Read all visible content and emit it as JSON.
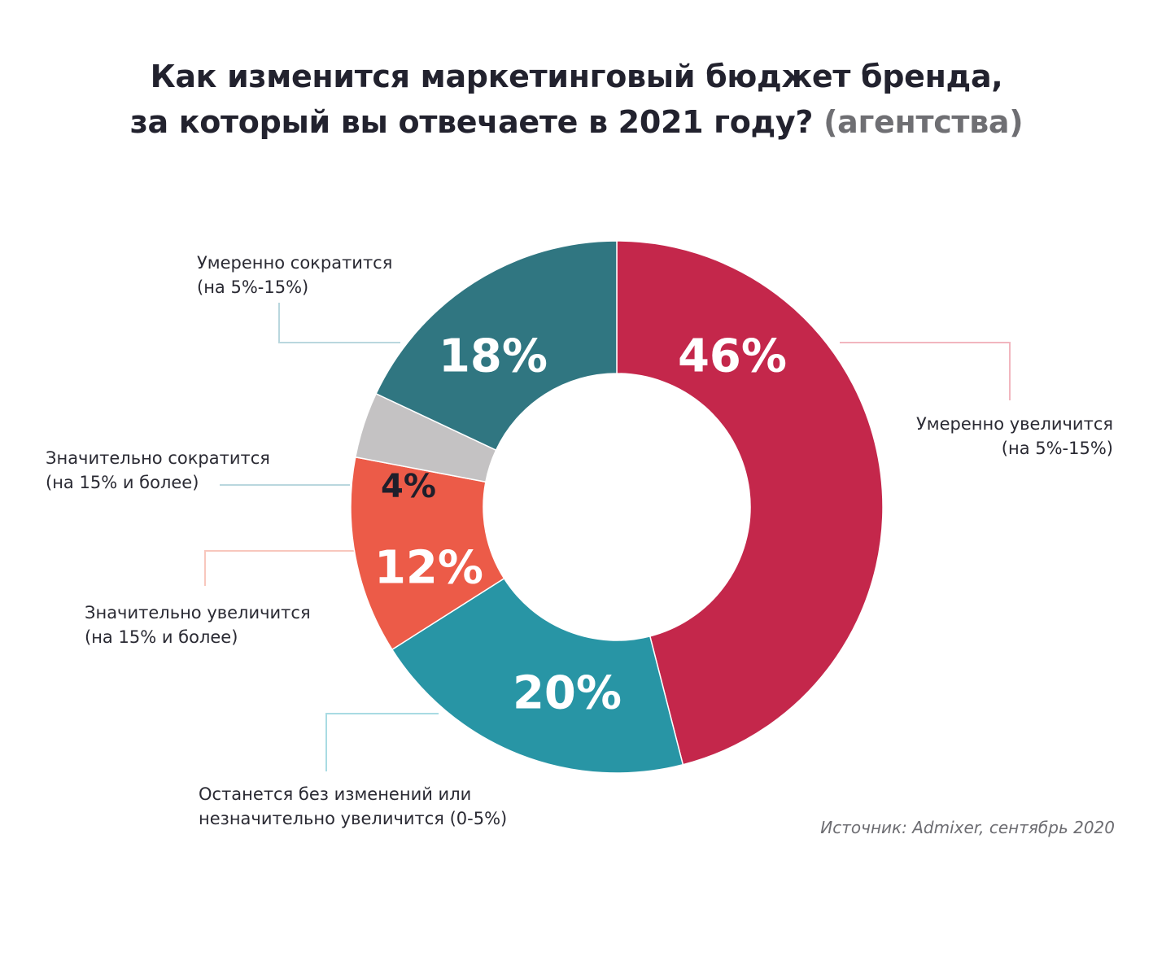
{
  "title": {
    "line1": "Как изменится маркетинговый бюджет бренда,",
    "line2_main": "за который вы отвечаете в 2021 году?",
    "line2_muted": "(агентства)"
  },
  "source": "Источник: Admixer, сентябрь 2020",
  "chart_data": {
    "type": "pie",
    "title": "Как изменится маркетинговый бюджет бренда, за который вы отвечаете в 2021 году? (агентства)",
    "slices": [
      {
        "name": "Умеренно увеличится (на 5%-15%)",
        "label_lines": [
          "Умеренно увеличится",
          "(на 5%-15%)"
        ],
        "value": 46,
        "display": "46%",
        "color": "#c4274b",
        "text_color": "#ffffff",
        "leader_color": "#f2b6bf"
      },
      {
        "name": "Останется без изменений или незначительно увеличится (0-5%)",
        "label_lines": [
          "Останется без изменений или",
          "незначительно увеличится (0-5%)"
        ],
        "value": 20,
        "display": "20%",
        "color": "#2895a5",
        "text_color": "#ffffff",
        "leader_color": "#a9dbe3"
      },
      {
        "name": "Значительно увеличится (на 15% и более)",
        "label_lines": [
          "Значительно увеличится",
          "(на 15% и более)"
        ],
        "value": 12,
        "display": "12%",
        "color": "#ec5b48",
        "text_color": "#ffffff",
        "leader_color": "#f8c7bd"
      },
      {
        "name": "Значительно сократится (на 15% и более)",
        "label_lines": [
          "Значительно сократится",
          "(на 15% и более)"
        ],
        "value": 4,
        "display": "4%",
        "color": "#c4c2c3",
        "text_color": "#1f1f2b",
        "leader_color": "#b9d7de"
      },
      {
        "name": "Умеренно сократится (на 5%-15%)",
        "label_lines": [
          "Умеренно сократится",
          "(на 5%-15%)"
        ],
        "value": 18,
        "display": "18%",
        "color": "#307681",
        "text_color": "#ffffff",
        "leader_color": "#b9d7de"
      }
    ],
    "start_angle_deg": 0,
    "direction": "clockwise",
    "hole_ratio": 0.5
  }
}
